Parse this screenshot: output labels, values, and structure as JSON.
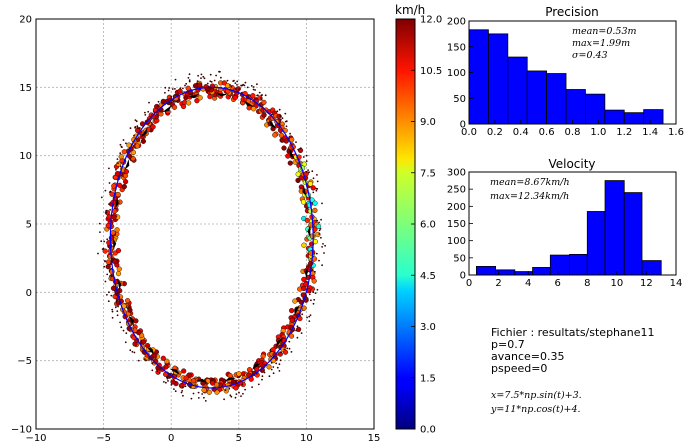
{
  "chart_data": [
    {
      "type": "scatter",
      "title": "",
      "xlim": [
        -10,
        15
      ],
      "ylim": [
        -10,
        20
      ],
      "x_ticks": [
        -10,
        -5,
        0,
        5,
        10,
        15
      ],
      "y_ticks": [
        -10,
        -5,
        0,
        5,
        10,
        15,
        20
      ],
      "grid": true,
      "reference_curve": {
        "x_center": 3,
        "y_center": 4,
        "x_amplitude": 7.5,
        "y_amplitude": 11,
        "color": "#0000ff"
      },
      "track": {
        "x_center": 3,
        "y_center": 4,
        "x_amplitude": 7.4,
        "y_amplitude": 10.8,
        "laps": 3
      }
    },
    {
      "type": "heatmap",
      "title": "km/h",
      "colormap": "jet",
      "range": [
        0.0,
        12.0
      ],
      "ticks": [
        "0.0",
        "1.5",
        "3.0",
        "4.5",
        "6.0",
        "7.5",
        "9.0",
        "10.5",
        "12.0"
      ]
    },
    {
      "type": "bar",
      "title": "Precision",
      "bin_edges": [
        0.0,
        0.15,
        0.3,
        0.45,
        0.6,
        0.75,
        0.9,
        1.05,
        1.2,
        1.35,
        1.5
      ],
      "values": [
        183,
        175,
        130,
        103,
        98,
        67,
        58,
        27,
        22,
        28
      ],
      "xlim": [
        0.0,
        1.6
      ],
      "ylim": [
        0,
        200
      ],
      "x_ticks": [
        "0.0",
        "0.2",
        "0.4",
        "0.6",
        "0.8",
        "1.0",
        "1.2",
        "1.4",
        "1.6"
      ],
      "y_ticks": [
        "0",
        "50",
        "100",
        "150",
        "200"
      ],
      "bar_color": "#0000ff",
      "annotations": [
        "mean=0.53m",
        "max=1.99m",
        "σ=0.43"
      ]
    },
    {
      "type": "bar",
      "title": "Velocity",
      "bin_edges": [
        0.5,
        1.8,
        3.1,
        4.3,
        5.5,
        6.8,
        8.0,
        9.2,
        10.5,
        11.7,
        13.0
      ],
      "values": [
        25,
        15,
        10,
        22,
        58,
        60,
        185,
        275,
        240,
        42
      ],
      "xlim": [
        0,
        14
      ],
      "ylim": [
        0,
        300
      ],
      "x_ticks": [
        "0",
        "2",
        "4",
        "6",
        "8",
        "10",
        "12",
        "14"
      ],
      "y_ticks": [
        "0",
        "50",
        "100",
        "150",
        "200",
        "250",
        "300"
      ],
      "bar_color": "#0000ff",
      "annotations": [
        "mean=8.67km/h",
        "max=12.34km/h"
      ]
    }
  ],
  "info": {
    "lines": [
      "Fichier : resultats/stephane11",
      "p=0.7",
      "avance=0.35",
      "pspeed=0"
    ],
    "equations": [
      "x=7.5*np.sin(t)+3.",
      "y=11*np.cos(t)+4."
    ]
  }
}
